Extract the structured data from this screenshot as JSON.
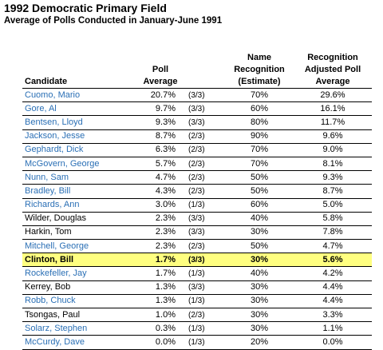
{
  "title": "1992 Democratic Primary Field",
  "subtitle": "Average of Polls Conducted in January-June 1991",
  "headers": {
    "candidate": "Candidate",
    "poll_line1": "Poll",
    "poll_line2": "Average",
    "rec_line1": "Name",
    "rec_line2": "Recognition",
    "rec_line3": "(Estimate)",
    "adj_line1": "Recognition",
    "adj_line2": "Adjusted Poll",
    "adj_line3": "Average"
  },
  "rows": [
    {
      "name": "Cuomo, Mario",
      "avg": "20.7%",
      "frac": "(3/3)",
      "rec": "70%",
      "adj": "29.6%",
      "link": true
    },
    {
      "name": "Gore, Al",
      "avg": "9.7%",
      "frac": "(3/3)",
      "rec": "60%",
      "adj": "16.1%",
      "link": true
    },
    {
      "name": "Bentsen, Lloyd",
      "avg": "9.3%",
      "frac": "(3/3)",
      "rec": "80%",
      "adj": "11.7%",
      "link": true
    },
    {
      "name": "Jackson, Jesse",
      "avg": "8.7%",
      "frac": "(2/3)",
      "rec": "90%",
      "adj": "9.6%",
      "link": true
    },
    {
      "name": "Gephardt, Dick",
      "avg": "6.3%",
      "frac": "(2/3)",
      "rec": "70%",
      "adj": "9.0%",
      "link": true
    },
    {
      "name": "McGovern, George",
      "avg": "5.7%",
      "frac": "(2/3)",
      "rec": "70%",
      "adj": "8.1%",
      "link": true
    },
    {
      "name": "Nunn, Sam",
      "avg": "4.7%",
      "frac": "(2/3)",
      "rec": "50%",
      "adj": "9.3%",
      "link": true
    },
    {
      "name": "Bradley, Bill",
      "avg": "4.3%",
      "frac": "(2/3)",
      "rec": "50%",
      "adj": "8.7%",
      "link": true
    },
    {
      "name": "Richards, Ann",
      "avg": "3.0%",
      "frac": "(1/3)",
      "rec": "60%",
      "adj": "5.0%",
      "link": true
    },
    {
      "name": "Wilder, Douglas",
      "avg": "2.3%",
      "frac": "(3/3)",
      "rec": "40%",
      "adj": "5.8%",
      "link": false
    },
    {
      "name": "Harkin, Tom",
      "avg": "2.3%",
      "frac": "(3/3)",
      "rec": "30%",
      "adj": "7.8%",
      "link": false
    },
    {
      "name": "Mitchell, George",
      "avg": "2.3%",
      "frac": "(2/3)",
      "rec": "50%",
      "adj": "4.7%",
      "link": true
    },
    {
      "name": "Clinton, Bill",
      "avg": "1.7%",
      "frac": "(3/3)",
      "rec": "30%",
      "adj": "5.6%",
      "link": false,
      "highlight": true
    },
    {
      "name": "Rockefeller, Jay",
      "avg": "1.7%",
      "frac": "(1/3)",
      "rec": "40%",
      "adj": "4.2%",
      "link": true
    },
    {
      "name": "Kerrey, Bob",
      "avg": "1.3%",
      "frac": "(3/3)",
      "rec": "30%",
      "adj": "4.4%",
      "link": false
    },
    {
      "name": "Robb, Chuck",
      "avg": "1.3%",
      "frac": "(1/3)",
      "rec": "30%",
      "adj": "4.4%",
      "link": true
    },
    {
      "name": "Tsongas, Paul",
      "avg": "1.0%",
      "frac": "(2/3)",
      "rec": "30%",
      "adj": "3.3%",
      "link": false
    },
    {
      "name": "Solarz, Stephen",
      "avg": "0.3%",
      "frac": "(1/3)",
      "rec": "30%",
      "adj": "1.1%",
      "link": true
    },
    {
      "name": "McCurdy, Dave",
      "avg": "0.0%",
      "frac": "(1/3)",
      "rec": "20%",
      "adj": "0.0%",
      "link": true
    }
  ]
}
